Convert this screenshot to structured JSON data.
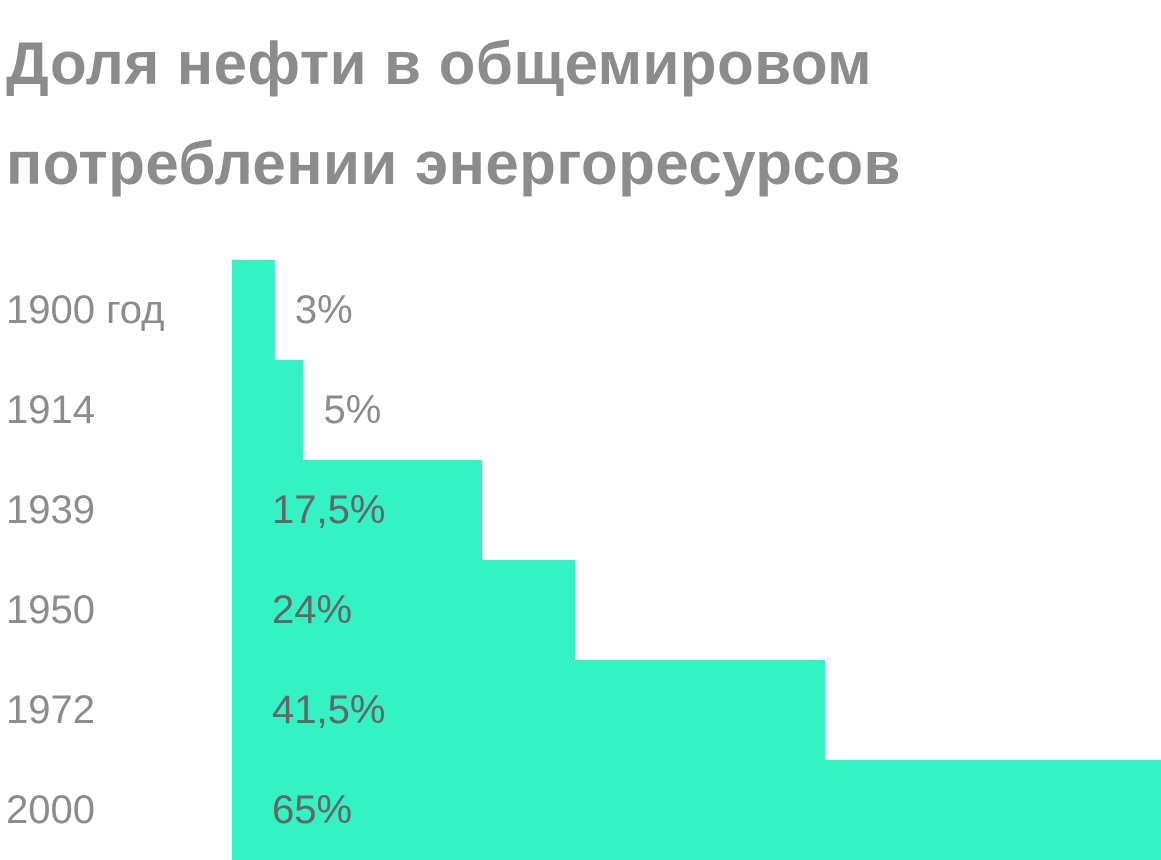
{
  "title_lines": [
    "Доля нефти в общемировом",
    "потреблении энергоресурсов"
  ],
  "colors": {
    "bar": "#33f2c3",
    "title": "#8c8c8c",
    "category_label": "#8c8c8c",
    "value_label_outside": "#8c8c8c",
    "value_label_inside": "#666666",
    "background": "#ffffff"
  },
  "chart_data": {
    "type": "bar",
    "orientation": "horizontal",
    "title": "Доля нефти в общемировом потреблении энергоресурсов",
    "categories": [
      "1900 год",
      "1914",
      "1939",
      "1950",
      "1972",
      "2000"
    ],
    "values": [
      3,
      5,
      17.5,
      24,
      41.5,
      65
    ],
    "value_labels": [
      "3%",
      "5%",
      "17,5%",
      "24%",
      "41,5%",
      "65%"
    ],
    "unit": "%",
    "xlim": [
      0,
      65
    ],
    "grid": false,
    "legend": "none"
  }
}
